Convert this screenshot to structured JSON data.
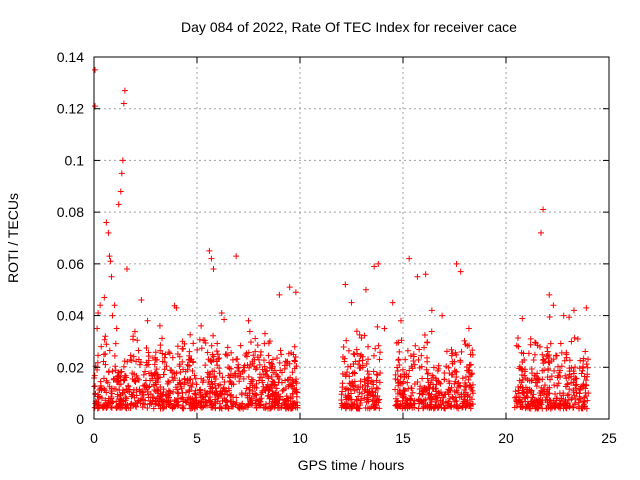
{
  "chart_data": {
    "type": "scatter",
    "title": "Day 084 of 2022, Rate Of TEC Index for receiver cace",
    "xlabel": "GPS time / hours",
    "ylabel": "ROTI / TECUs",
    "xlim": [
      0,
      25
    ],
    "ylim": [
      0,
      0.14
    ],
    "x_ticks": [
      0,
      5,
      10,
      15,
      20,
      25
    ],
    "x_tick_labels": [
      "0",
      "5",
      "10",
      "15",
      "20",
      "25"
    ],
    "y_ticks": [
      0,
      0.02,
      0.04,
      0.06,
      0.08,
      0.1,
      0.12,
      0.14
    ],
    "y_tick_labels": [
      "0",
      "0.02",
      "0.04",
      "0.06",
      "0.08",
      "0.1",
      "0.12",
      "0.14"
    ],
    "grid": true,
    "marker": "+",
    "color": "#ff0000",
    "series": [
      {
        "name": "ROTI",
        "x": [
          0.05,
          0.05,
          0.15,
          0.2,
          0.3,
          0.35,
          0.5,
          0.55,
          0.6,
          0.7,
          0.75,
          0.8,
          0.85,
          0.9,
          1.0,
          1.1,
          1.2,
          1.3,
          1.35,
          1.4,
          1.45,
          1.5,
          1.6,
          1.9,
          2.3,
          2.6,
          3.2,
          4.0,
          4.3,
          5.2,
          5.6,
          5.7,
          5.8,
          6.2,
          6.9,
          7.5,
          8.3,
          9.0,
          9.5,
          9.8,
          12.2,
          12.5,
          13.2,
          13.6,
          13.8,
          14.1,
          14.5,
          14.9,
          15.3,
          15.7,
          16.1,
          16.4,
          16.9,
          17.6,
          17.8,
          18.2,
          20.6,
          21.2,
          21.7,
          21.8,
          22.1,
          22.3,
          22.8,
          23.3,
          23.9
        ],
        "y": [
          0.135,
          0.121,
          0.035,
          0.041,
          0.044,
          0.028,
          0.047,
          0.032,
          0.076,
          0.072,
          0.063,
          0.061,
          0.055,
          0.04,
          0.044,
          0.035,
          0.083,
          0.088,
          0.095,
          0.1,
          0.122,
          0.127,
          0.058,
          0.032,
          0.046,
          0.038,
          0.036,
          0.043,
          0.03,
          0.036,
          0.065,
          0.062,
          0.058,
          0.041,
          0.063,
          0.038,
          0.033,
          0.048,
          0.051,
          0.049,
          0.052,
          0.045,
          0.05,
          0.059,
          0.06,
          0.035,
          0.045,
          0.038,
          0.062,
          0.055,
          0.056,
          0.042,
          0.04,
          0.06,
          0.057,
          0.035,
          0.028,
          0.031,
          0.072,
          0.081,
          0.048,
          0.044,
          0.04,
          0.042,
          0.043
        ]
      }
    ]
  }
}
